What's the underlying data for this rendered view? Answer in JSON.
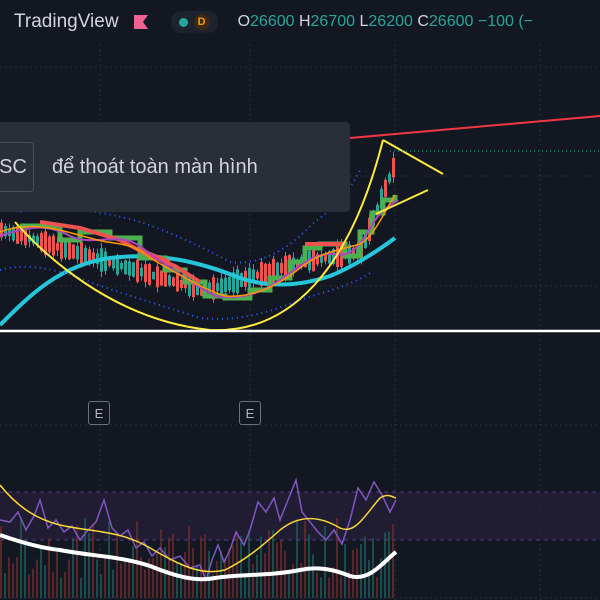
{
  "header": {
    "brand": "TradingView",
    "interval_badge": "D",
    "ohlc": {
      "open_label": "O",
      "open": "26600",
      "high_label": "H",
      "high": "26700",
      "low_label": "L",
      "low": "26200",
      "close_label": "C",
      "close": "26600",
      "change": "−100 (−"
    }
  },
  "toast": {
    "key_label": "SC",
    "message": "để thoát toàn màn hình"
  },
  "markers": {
    "earnings_1": "E",
    "earnings_2": "E"
  },
  "colors": {
    "background": "#131722",
    "up": "#26a69a",
    "down": "#ef5350",
    "trendline": "#f23645",
    "cup": "#ffeb3b",
    "ma_long": "#26c6da",
    "ma_short": "#4caf50",
    "oscillator": "#7e57c2"
  }
}
